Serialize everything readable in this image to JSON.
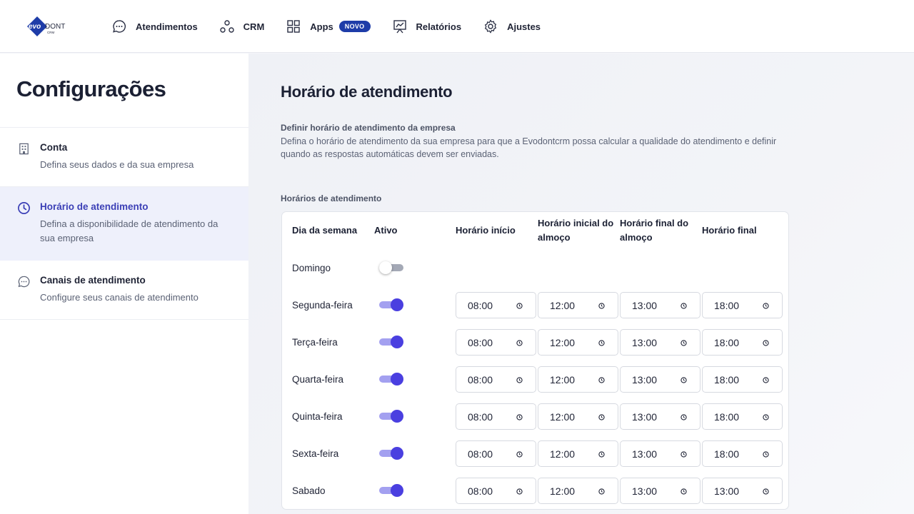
{
  "brand": {
    "logo_text": "EVODONT",
    "logo_sub": "CRM"
  },
  "nav": {
    "items": [
      {
        "label": "Atendimentos",
        "icon": "chat-bubble-icon"
      },
      {
        "label": "CRM",
        "icon": "crm-nodes-icon"
      },
      {
        "label": "Apps",
        "icon": "apps-grid-icon",
        "badge": "NOVO"
      },
      {
        "label": "Relatórios",
        "icon": "presentation-chart-icon"
      },
      {
        "label": "Ajustes",
        "icon": "gear-icon"
      }
    ]
  },
  "sidebar": {
    "title": "Configurações",
    "items": [
      {
        "title": "Conta",
        "desc": "Defina seus dados e da sua empresa",
        "icon": "building-icon",
        "active": false
      },
      {
        "title": "Horário de atendimento",
        "desc": "Defina a disponibilidade de atendimento da sua empresa",
        "icon": "clock-icon",
        "active": true
      },
      {
        "title": "Canais de atendimento",
        "desc": "Configure seus canais de atendimento",
        "icon": "chat-bubble-icon",
        "active": false
      }
    ]
  },
  "main": {
    "title": "Horário de atendimento",
    "section_label": "Definir horário de atendimento da empresa",
    "section_desc": "Defina o horário de atendimento da sua empresa para que a Evodontcrm possa calcular a qualidade do atendimento e definir quando as respostas automáticas devem ser enviadas.",
    "table_label": "Horários de atendimento",
    "columns": [
      "Dia da semana",
      "Ativo",
      "Horário início",
      "Horário inicial do almoço",
      "Horário final do almoço",
      "Horário final"
    ],
    "rows": [
      {
        "day": "Domingo",
        "active": false
      },
      {
        "day": "Segunda-feira",
        "active": true,
        "start": "08:00",
        "lunch_start": "12:00",
        "lunch_end": "13:00",
        "end": "18:00"
      },
      {
        "day": "Terça-feira",
        "active": true,
        "start": "08:00",
        "lunch_start": "12:00",
        "lunch_end": "13:00",
        "end": "18:00"
      },
      {
        "day": "Quarta-feira",
        "active": true,
        "start": "08:00",
        "lunch_start": "12:00",
        "lunch_end": "13:00",
        "end": "18:00"
      },
      {
        "day": "Quinta-feira",
        "active": true,
        "start": "08:00",
        "lunch_start": "12:00",
        "lunch_end": "13:00",
        "end": "18:00"
      },
      {
        "day": "Sexta-feira",
        "active": true,
        "start": "08:00",
        "lunch_start": "12:00",
        "lunch_end": "13:00",
        "end": "18:00"
      },
      {
        "day": "Sabado",
        "active": true,
        "start": "08:00",
        "lunch_start": "12:00",
        "lunch_end": "13:00",
        "end": "13:00"
      }
    ]
  },
  "colors": {
    "accent": "#4a3fe0",
    "accent_light": "#a3a0f0",
    "badge": "#1e3ca8",
    "active_bg": "#eef0fb"
  }
}
